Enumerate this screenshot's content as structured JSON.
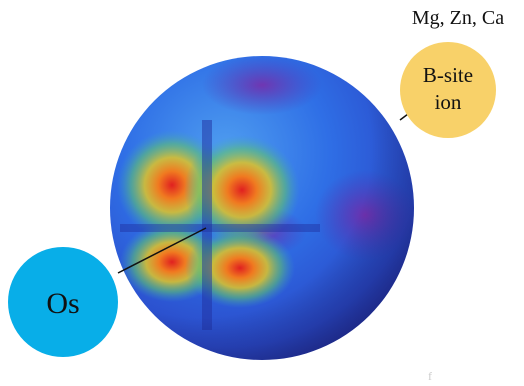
{
  "labels": {
    "dopants": "Mg, Zn, Ca",
    "b_site": [
      "B-site",
      "ion"
    ],
    "os": "Os",
    "corner_mark": "f"
  }
}
